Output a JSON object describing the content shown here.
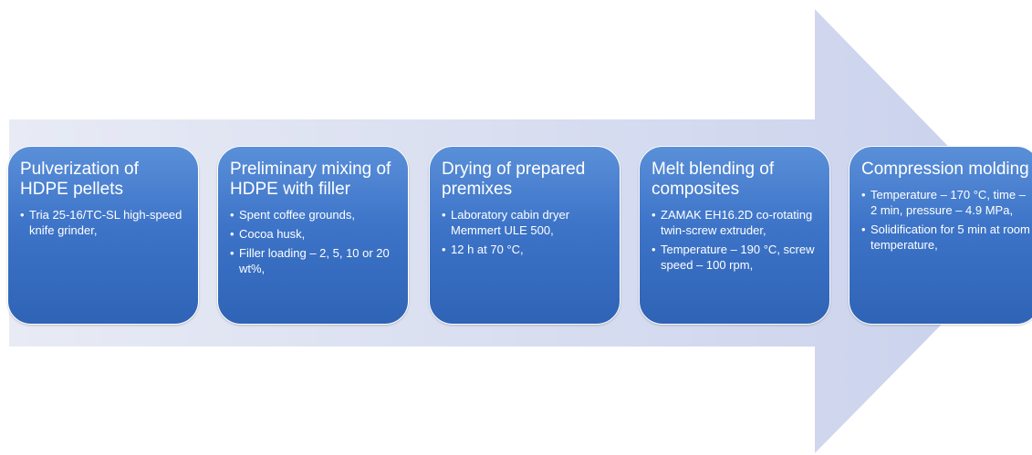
{
  "steps": [
    {
      "title": "Pulverization of HDPE pellets",
      "bullets": [
        "Tria 25-16/TC-SL high-speed knife grinder,"
      ]
    },
    {
      "title": "Preliminary mixing of HDPE with filler",
      "bullets": [
        "Spent coffee grounds,",
        "Cocoa husk,",
        "Filler loading – 2, 5, 10 or 20 wt%,"
      ]
    },
    {
      "title": "Drying of prepared premixes",
      "bullets": [
        "Laboratory cabin dryer Memmert ULE 500,",
        "12 h at 70 °C,"
      ]
    },
    {
      "title": "Melt blending of composites",
      "bullets": [
        "ZAMAK EH16.2D co-rotating twin-screw extruder,",
        "Temperature – 190 °C, screw speed – 100 rpm,"
      ]
    },
    {
      "title": "Compression molding",
      "bullets": [
        "Temperature – 170 °C, time – 2 min, pressure – 4.9 MPa,",
        "Solidification for 5 min at room temperature,"
      ]
    }
  ]
}
